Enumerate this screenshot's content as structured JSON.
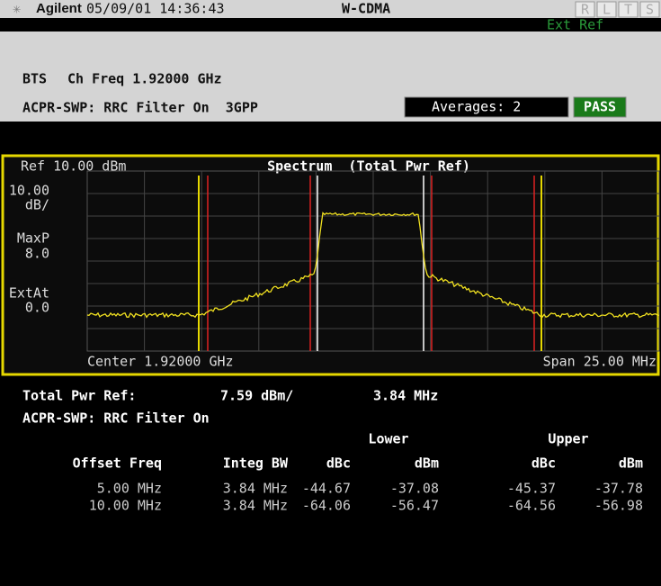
{
  "header": {
    "brand": "Agilent",
    "datetime": "05/09/01 14:36:43",
    "mode": "W-CDMA",
    "indicators": [
      "R",
      "L",
      "T",
      "S"
    ],
    "ext_ref": "Ext Ref"
  },
  "info": {
    "device": "BTS",
    "ch_freq": "Ch Freq 1.92000 GHz",
    "measurement": "ACPR-SWP: RRC Filter On  3GPP",
    "averages": "Averages: 2",
    "status": "PASS"
  },
  "plot": {
    "ref": "Ref 10.00 dBm",
    "title": "Spectrum  (Total Pwr Ref)",
    "scale_labels": [
      "10.00",
      "dB/",
      "MaxP",
      "8.0",
      "ExtAt",
      "0.0"
    ],
    "center": "Center 1.92000 GHz",
    "span": "Span 25.00 MHz"
  },
  "results": {
    "total_pwr_label": "Total Pwr Ref:",
    "total_pwr": "7.59 dBm/",
    "total_bw": "3.84 MHz",
    "filter": "ACPR-SWP: RRC Filter On",
    "lower": "Lower",
    "upper": "Upper",
    "columns": [
      "Offset Freq",
      "Integ BW",
      "dBc",
      "dBm",
      "dBc",
      "dBm"
    ],
    "rows": [
      [
        "5.00 MHz",
        "3.84 MHz",
        "-44.67",
        "-37.08",
        "-45.37",
        "-37.78"
      ],
      [
        "10.00 MHz",
        "3.84 MHz",
        "-64.06",
        "-56.47",
        "-64.56",
        "-56.98"
      ]
    ]
  }
}
